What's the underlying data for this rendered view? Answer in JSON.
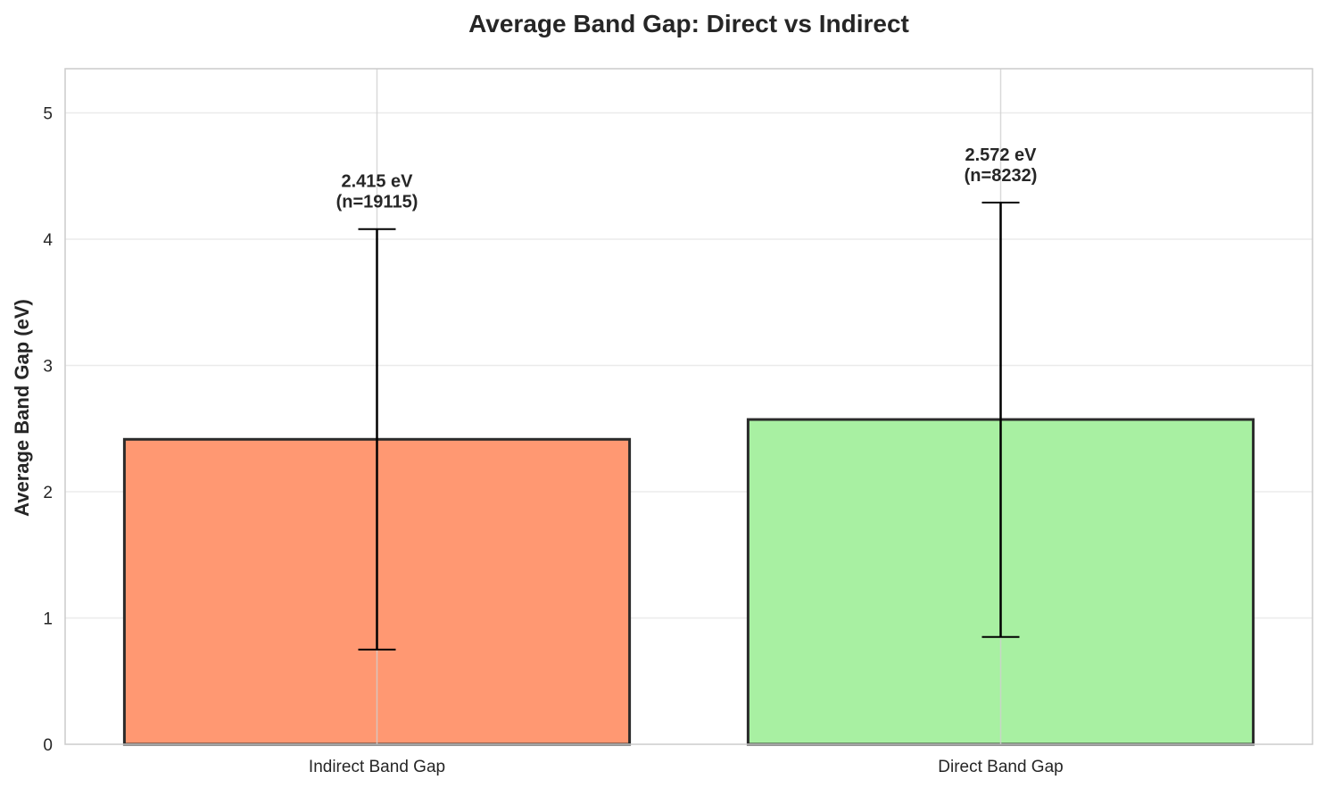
{
  "chart_data": {
    "type": "bar",
    "title": "Average Band Gap: Direct vs Indirect",
    "xlabel": "",
    "ylabel": "Average Band Gap (eV)",
    "ylim": [
      0,
      5.35
    ],
    "yticks": [
      "0",
      "1",
      "2",
      "3",
      "4",
      "5"
    ],
    "grid": true,
    "categories": [
      "Indirect Band Gap",
      "Direct Band Gap"
    ],
    "values": [
      2.415,
      2.572
    ],
    "error_low": [
      0.75,
      0.85
    ],
    "error_high": [
      4.08,
      4.29
    ],
    "data_labels": [
      {
        "value": "2.415 eV",
        "count": "(n=19115)"
      },
      {
        "value": "2.572 eV",
        "count": "(n=8232)"
      }
    ],
    "colors": [
      "#FF9872",
      "#A8F0A2"
    ],
    "edge_color": "#2b2b2b"
  }
}
